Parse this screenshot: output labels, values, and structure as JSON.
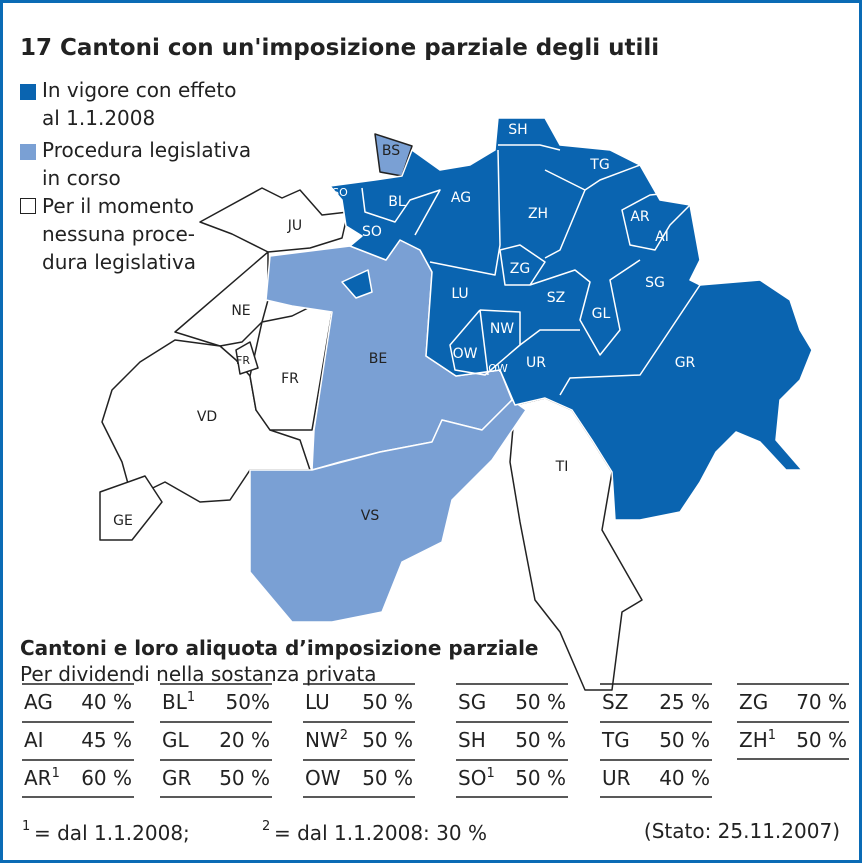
{
  "title": "17 Cantoni con un'imposizione parziale degli utili",
  "legend": [
    {
      "lines": [
        "In vigore con effeto",
        "al 1.1.2008"
      ]
    },
    {
      "lines": [
        "Procedura legislativa",
        "in corso"
      ]
    },
    {
      "lines": [
        "Per il momento",
        "nessuna proce-",
        "dura legislativa"
      ]
    }
  ],
  "map": {
    "labels": [
      "SH",
      "BS",
      "TG",
      "SO",
      "BL",
      "AG",
      "JU",
      "ZH",
      "SO",
      "AR",
      "AI",
      "ZG",
      "SG",
      "LU",
      "SZ",
      "NE",
      "GL",
      "NW",
      "OW",
      "FR",
      "BE",
      "UR",
      "OW",
      "GR",
      "FR",
      "VD",
      "TI",
      "GE",
      "VS"
    ]
  },
  "table": {
    "title": "Cantoni e loro aliquota d’imposizione parziale",
    "subtitle": "Per dividendi nella sostanza privata",
    "columns": [
      [
        {
          "code": "AG",
          "rate": "40 %"
        },
        {
          "code": "AI",
          "rate": "45 %"
        },
        {
          "code": "AR",
          "sup": "1",
          "rate": "60 %"
        }
      ],
      [
        {
          "code": "BL",
          "sup": "1",
          "rate": "50%"
        },
        {
          "code": "GL",
          "rate": "20 %"
        },
        {
          "code": "GR",
          "rate": "50 %"
        }
      ],
      [
        {
          "code": "LU",
          "rate": "50 %"
        },
        {
          "code": "NW",
          "sup": "2",
          "rate": "50 %"
        },
        {
          "code": "OW",
          "rate": "50 %"
        }
      ],
      [
        {
          "code": "SG",
          "rate": "50 %"
        },
        {
          "code": "SH",
          "rate": "50 %"
        },
        {
          "code": "SO",
          "sup": "1",
          "rate": "50 %"
        }
      ],
      [
        {
          "code": "SZ",
          "rate": "25 %"
        },
        {
          "code": "TG",
          "rate": "50 %"
        },
        {
          "code": "UR",
          "rate": "40 %"
        }
      ],
      [
        {
          "code": "ZG",
          "rate": "70 %"
        },
        {
          "code": "ZH",
          "sup": "1",
          "rate": "50 %"
        }
      ]
    ]
  },
  "footnotes": [
    {
      "mark": "1",
      "text": "= dal 1.1.2008;"
    },
    {
      "mark": "2",
      "text": "= dal 1.1.2008: 30 %"
    }
  ],
  "status": "(Stato: 25.11.2007)"
}
